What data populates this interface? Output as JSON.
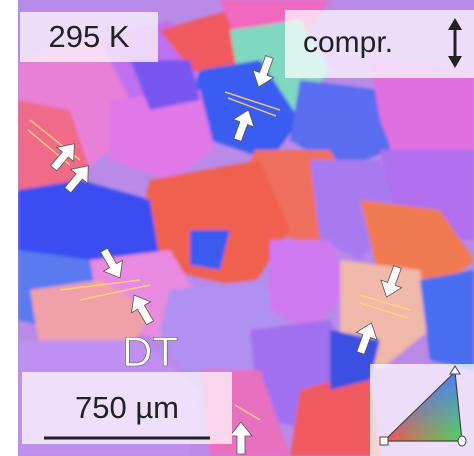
{
  "labels": {
    "temperature": "295 K",
    "loading": "compr.",
    "twin": "DT",
    "scale_bar": "750 µm"
  }
}
